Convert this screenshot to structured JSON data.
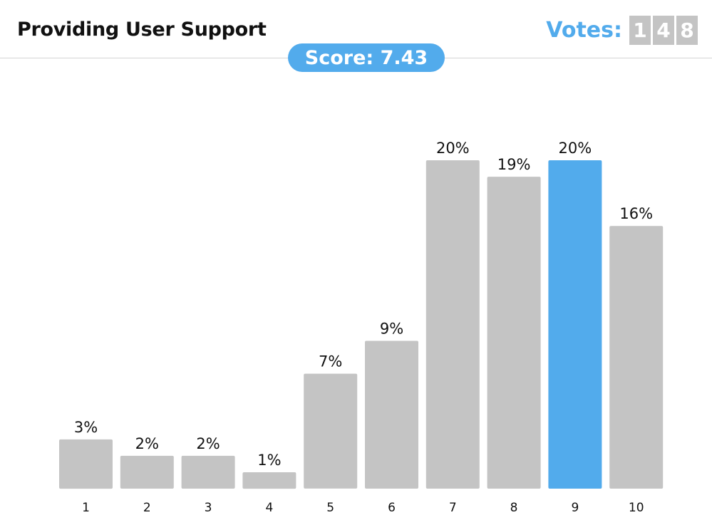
{
  "header": {
    "title": "Providing User Support",
    "votes_label": "Votes:",
    "votes_digits": [
      "1",
      "4",
      "8"
    ],
    "score_text": "Score: 7.43"
  },
  "colors": {
    "bar": "#c4c4c4",
    "highlight": "#52abec"
  },
  "chart_data": {
    "type": "bar",
    "categories": [
      "1",
      "2",
      "3",
      "4",
      "5",
      "6",
      "7",
      "8",
      "9",
      "10"
    ],
    "values": [
      3,
      2,
      2,
      1,
      7,
      9,
      20,
      19,
      20,
      16
    ],
    "value_labels": [
      "3%",
      "2%",
      "2%",
      "1%",
      "7%",
      "9%",
      "20%",
      "19%",
      "20%",
      "16%"
    ],
    "highlight_category": "9",
    "grid": false,
    "legend": "none"
  }
}
